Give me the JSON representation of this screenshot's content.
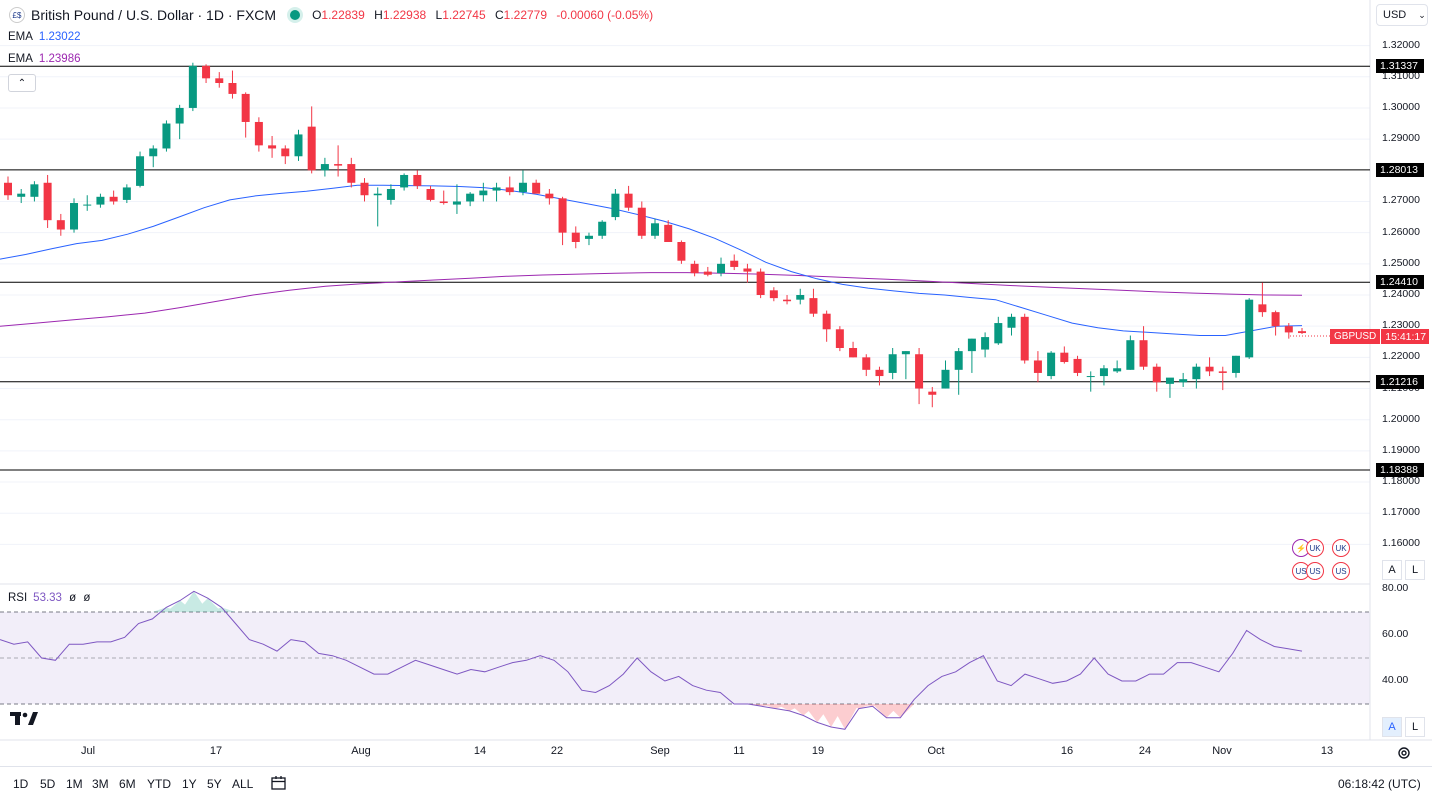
{
  "header": {
    "symbol_title": "British Pound / U.S. Dollar · 1D · FXCM",
    "ohlc": [
      {
        "k": "O",
        "v": "1.22839"
      },
      {
        "k": "H",
        "v": "1.22938"
      },
      {
        "k": "L",
        "v": "1.22745"
      },
      {
        "k": "C",
        "v": "1.22779"
      },
      {
        "k": "",
        "v": "-0.00060 (-0.05%)"
      }
    ]
  },
  "indicators": {
    "ema1": {
      "label": "EMA",
      "value": "1.23022",
      "color": "#2962ff"
    },
    "ema2": {
      "label": "EMA",
      "value": "1.23986",
      "color": "#9c27b0"
    }
  },
  "currency": {
    "label": "USD"
  },
  "price_axis": [
    "1.32000",
    "1.31000",
    "1.30000",
    "1.29000",
    "1.27000",
    "1.26000",
    "1.25000",
    "1.24000",
    "1.23000",
    "1.22000",
    "1.21000",
    "1.20000",
    "1.19000",
    "1.18000",
    "1.17000",
    "1.16000"
  ],
  "levels": [
    {
      "label": "1.31337",
      "value": 1.31337
    },
    {
      "label": "1.28013",
      "value": 1.28013
    },
    {
      "label": "1.24410",
      "value": 1.2441
    },
    {
      "label": "1.21216",
      "value": 1.21216
    },
    {
      "label": "1.18388",
      "value": 1.18388
    }
  ],
  "live_tag": {
    "symbol": "GBPUSD",
    "countdown": "15:41:17"
  },
  "rsi": {
    "label": "RSI",
    "value": "53.33",
    "extra1": "ø",
    "extra2": "ø",
    "axis": [
      "80.00",
      "60.00",
      "40.00"
    ]
  },
  "x_axis": [
    "Jul",
    "17",
    "Aug",
    "14",
    "22",
    "Sep",
    "11",
    "19",
    "Oct",
    "16",
    "24",
    "Nov",
    "13"
  ],
  "ranges": [
    "1D",
    "5D",
    "1M",
    "3M",
    "6M",
    "YTD",
    "1Y",
    "5Y",
    "ALL"
  ],
  "clock": "06:18:42 (UTC)",
  "scale_buttons": {
    "auto": "A",
    "log": "L"
  },
  "colors": {
    "up": "#089981",
    "down": "#f23645",
    "ema_fast": "#2962ff",
    "ema_slow": "#9c27b0",
    "rsi": "#7e57c2"
  },
  "chart_data": {
    "type": "candlestick",
    "title": "British Pound / U.S. Dollar · 1D · FXCM",
    "ylim": [
      1.155,
      1.325
    ],
    "candles": [
      [
        1.276,
        1.278,
        1.2705,
        1.272
      ],
      [
        1.2715,
        1.274,
        1.2695,
        1.2725
      ],
      [
        1.2715,
        1.2765,
        1.27,
        1.2755
      ],
      [
        1.276,
        1.2785,
        1.2615,
        1.264
      ],
      [
        1.264,
        1.266,
        1.259,
        1.261
      ],
      [
        1.261,
        1.271,
        1.26,
        1.2695
      ],
      [
        1.269,
        1.272,
        1.267,
        1.269
      ],
      [
        1.269,
        1.2725,
        1.268,
        1.2715
      ],
      [
        1.2715,
        1.2735,
        1.269,
        1.27
      ],
      [
        1.2705,
        1.2755,
        1.2695,
        1.2745
      ],
      [
        1.275,
        1.286,
        1.2745,
        1.2845
      ],
      [
        1.2845,
        1.288,
        1.281,
        1.287
      ],
      [
        1.287,
        1.296,
        1.286,
        1.295
      ],
      [
        1.295,
        1.301,
        1.29,
        1.3
      ],
      [
        1.3,
        1.3145,
        1.299,
        1.3135
      ],
      [
        1.3135,
        1.314,
        1.308,
        1.3095
      ],
      [
        1.3095,
        1.3115,
        1.3065,
        1.308
      ],
      [
        1.308,
        1.312,
        1.303,
        1.3045
      ],
      [
        1.3045,
        1.305,
        1.2905,
        1.2955
      ],
      [
        1.2955,
        1.297,
        1.286,
        1.288
      ],
      [
        1.288,
        1.291,
        1.284,
        1.287
      ],
      [
        1.287,
        1.288,
        1.282,
        1.2845
      ],
      [
        1.2845,
        1.293,
        1.283,
        1.2915
      ],
      [
        1.294,
        1.3005,
        1.279,
        1.28
      ],
      [
        1.28,
        1.284,
        1.278,
        1.282
      ],
      [
        1.282,
        1.288,
        1.278,
        1.2815
      ],
      [
        1.282,
        1.284,
        1.2745,
        1.276
      ],
      [
        1.276,
        1.2775,
        1.27,
        1.272
      ],
      [
        1.272,
        1.2745,
        1.262,
        1.2725
      ],
      [
        1.2705,
        1.2755,
        1.269,
        1.274
      ],
      [
        1.2745,
        1.279,
        1.2735,
        1.2785
      ],
      [
        1.2785,
        1.28,
        1.274,
        1.275
      ],
      [
        1.274,
        1.275,
        1.27,
        1.2705
      ],
      [
        1.27,
        1.2735,
        1.269,
        1.2695
      ],
      [
        1.269,
        1.2755,
        1.266,
        1.27
      ],
      [
        1.27,
        1.273,
        1.2685,
        1.2725
      ],
      [
        1.272,
        1.276,
        1.27,
        1.2735
      ],
      [
        1.2735,
        1.276,
        1.27,
        1.2745
      ],
      [
        1.2745,
        1.278,
        1.272,
        1.273
      ],
      [
        1.273,
        1.28,
        1.272,
        1.276
      ],
      [
        1.276,
        1.277,
        1.273,
        1.2725
      ],
      [
        1.2725,
        1.274,
        1.269,
        1.271
      ],
      [
        1.271,
        1.2715,
        1.256,
        1.26
      ],
      [
        1.26,
        1.262,
        1.255,
        1.257
      ],
      [
        1.258,
        1.26,
        1.256,
        1.259
      ],
      [
        1.259,
        1.264,
        1.258,
        1.2635
      ],
      [
        1.265,
        1.274,
        1.264,
        1.2725
      ],
      [
        1.2725,
        1.275,
        1.267,
        1.268
      ],
      [
        1.268,
        1.27,
        1.258,
        1.259
      ],
      [
        1.259,
        1.2645,
        1.258,
        1.263
      ],
      [
        1.2625,
        1.264,
        1.257,
        1.257
      ],
      [
        1.257,
        1.2575,
        1.25,
        1.251
      ],
      [
        1.25,
        1.251,
        1.246,
        1.247
      ],
      [
        1.2475,
        1.249,
        1.246,
        1.2465
      ],
      [
        1.247,
        1.252,
        1.246,
        1.25
      ],
      [
        1.251,
        1.253,
        1.248,
        1.249
      ],
      [
        1.2485,
        1.25,
        1.244,
        1.2475
      ],
      [
        1.2475,
        1.2485,
        1.239,
        1.24
      ],
      [
        1.2415,
        1.2425,
        1.238,
        1.239
      ],
      [
        1.2385,
        1.24,
        1.237,
        1.238
      ],
      [
        1.2385,
        1.242,
        1.237,
        1.24
      ],
      [
        1.239,
        1.242,
        1.233,
        1.234
      ],
      [
        1.234,
        1.235,
        1.225,
        1.229
      ],
      [
        1.229,
        1.23,
        1.222,
        1.223
      ],
      [
        1.223,
        1.225,
        1.22,
        1.22
      ],
      [
        1.22,
        1.221,
        1.214,
        1.216
      ],
      [
        1.216,
        1.217,
        1.211,
        1.214
      ],
      [
        1.215,
        1.223,
        1.213,
        1.221
      ],
      [
        1.221,
        1.222,
        1.213,
        1.222
      ],
      [
        1.221,
        1.223,
        1.205,
        1.21
      ],
      [
        1.209,
        1.2105,
        1.204,
        1.208
      ],
      [
        1.21,
        1.219,
        1.21,
        1.216
      ],
      [
        1.216,
        1.223,
        1.208,
        1.222
      ],
      [
        1.222,
        1.226,
        1.215,
        1.226
      ],
      [
        1.2225,
        1.228,
        1.22,
        1.2265
      ],
      [
        1.2245,
        1.233,
        1.224,
        1.231
      ],
      [
        1.2295,
        1.234,
        1.227,
        1.233
      ],
      [
        1.233,
        1.234,
        1.218,
        1.219
      ],
      [
        1.219,
        1.222,
        1.212,
        1.215
      ],
      [
        1.214,
        1.222,
        1.213,
        1.2215
      ],
      [
        1.2215,
        1.2235,
        1.218,
        1.2185
      ],
      [
        1.2195,
        1.2205,
        1.214,
        1.215
      ],
      [
        1.214,
        1.2155,
        1.209,
        1.214
      ],
      [
        1.214,
        1.2175,
        1.211,
        1.2165
      ],
      [
        1.2155,
        1.219,
        1.215,
        1.2165
      ],
      [
        1.216,
        1.227,
        1.216,
        1.2255
      ],
      [
        1.2255,
        1.23,
        1.216,
        1.217
      ],
      [
        1.217,
        1.218,
        1.209,
        1.212
      ],
      [
        1.2115,
        1.213,
        1.207,
        1.2135
      ],
      [
        1.212,
        1.215,
        1.2105,
        1.213
      ],
      [
        1.213,
        1.218,
        1.21,
        1.217
      ],
      [
        1.217,
        1.22,
        1.214,
        1.2155
      ],
      [
        1.2155,
        1.217,
        1.2095,
        1.215
      ],
      [
        1.215,
        1.2205,
        1.2135,
        1.2205
      ],
      [
        1.22,
        1.239,
        1.2195,
        1.2385
      ],
      [
        1.237,
        1.244,
        1.233,
        1.2345
      ],
      [
        1.2345,
        1.235,
        1.227,
        1.23
      ],
      [
        1.23,
        1.231,
        1.226,
        1.228
      ],
      [
        1.2284,
        1.2294,
        1.2275,
        1.2278
      ]
    ],
    "ema_fast": [
      1.2515,
      1.253,
      1.2548,
      1.2565,
      1.2575,
      1.2595,
      1.262,
      1.265,
      1.268,
      1.2705,
      1.2718,
      1.2726,
      1.2733,
      1.2742,
      1.2752,
      1.2752,
      1.2751,
      1.275,
      1.2748,
      1.2744,
      1.2735,
      1.2723,
      1.2708,
      1.2693,
      1.2677,
      1.2658,
      1.2637,
      1.2612,
      1.2582,
      1.2545,
      1.2505,
      1.2475,
      1.2452,
      1.2434,
      1.2422,
      1.2413,
      1.2405,
      1.24,
      1.2392,
      1.2385,
      1.236,
      1.2335,
      1.231,
      1.2295,
      1.2285,
      1.228,
      1.2275,
      1.227,
      1.227,
      1.2285,
      1.23,
      1.2302
    ],
    "ema_slow": [
      1.23,
      1.231,
      1.232,
      1.233,
      1.2342,
      1.236,
      1.238,
      1.24,
      1.2415,
      1.2428,
      1.2436,
      1.2442,
      1.2448,
      1.2454,
      1.246,
      1.2464,
      1.2467,
      1.247,
      1.2472,
      1.2472,
      1.247,
      1.2467,
      1.2463,
      1.2458,
      1.2453,
      1.2448,
      1.2442,
      1.2436,
      1.243,
      1.2425,
      1.242,
      1.2415,
      1.241,
      1.2406,
      1.2403,
      1.24,
      1.2399
    ],
    "rsi_values": [
      58,
      56,
      57,
      50,
      49,
      56,
      56,
      57,
      57,
      59,
      65,
      67,
      72,
      75,
      79,
      76,
      72,
      65,
      58,
      56,
      53,
      58,
      57,
      52,
      51,
      49,
      46,
      43,
      43,
      46,
      49,
      47,
      45,
      43,
      45,
      44,
      46,
      48,
      49,
      51,
      49,
      44,
      36,
      35,
      38,
      43,
      50,
      44,
      40,
      42,
      38,
      36,
      35,
      30,
      30,
      29,
      28,
      27,
      25,
      22,
      20,
      19,
      28,
      29,
      24,
      24,
      32,
      38,
      42,
      44,
      48,
      51,
      40,
      38,
      43,
      41,
      39,
      40,
      43,
      50,
      43,
      40,
      40,
      43,
      43,
      48,
      48,
      46,
      44,
      52,
      62,
      58,
      55,
      54,
      53
    ]
  }
}
